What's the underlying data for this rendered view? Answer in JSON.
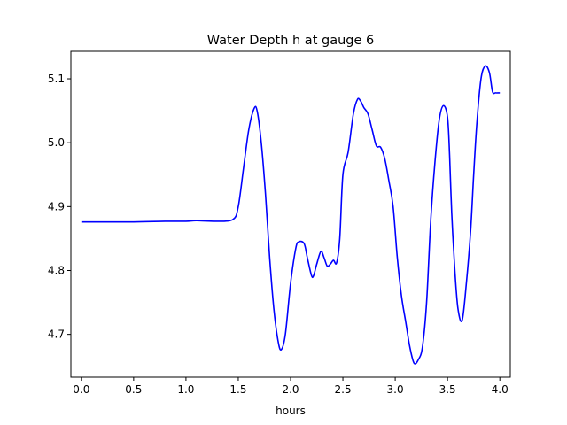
{
  "chart_data": {
    "type": "line",
    "title": "Water Depth h at gauge 6",
    "xlabel": "hours",
    "ylabel": "",
    "xlim": [
      -0.1,
      4.1
    ],
    "ylim": [
      4.633,
      5.143
    ],
    "xticks": [
      0.0,
      0.5,
      1.0,
      1.5,
      2.0,
      2.5,
      3.0,
      3.5,
      4.0
    ],
    "xtick_labels": [
      "0.0",
      "0.5",
      "1.0",
      "1.5",
      "2.0",
      "2.5",
      "3.0",
      "3.5",
      "4.0"
    ],
    "yticks": [
      4.7,
      4.8,
      4.9,
      5.0,
      5.1
    ],
    "ytick_labels": [
      "4.7",
      "4.8",
      "4.9",
      "5.0",
      "5.1"
    ],
    "grid": false,
    "legend": "none",
    "line_color": "#0000ff",
    "series": [
      {
        "x": [
          0.0,
          0.5,
          0.8,
          1.0,
          1.1,
          1.3,
          1.45,
          1.5,
          1.55,
          1.6,
          1.65,
          1.68,
          1.72,
          1.76,
          1.8,
          1.84,
          1.88,
          1.91,
          1.95,
          2.0,
          2.05,
          2.08,
          2.13,
          2.16,
          2.2,
          2.22,
          2.25,
          2.29,
          2.32,
          2.35,
          2.38,
          2.41,
          2.44,
          2.47,
          2.5,
          2.55,
          2.6,
          2.64,
          2.67,
          2.7,
          2.74,
          2.78,
          2.82,
          2.86,
          2.9,
          2.94,
          2.98,
          3.02,
          3.06,
          3.1,
          3.14,
          3.18,
          3.22,
          3.26,
          3.3,
          3.34,
          3.38,
          3.42,
          3.46,
          3.5,
          3.52,
          3.54,
          3.57,
          3.6,
          3.64,
          3.68,
          3.72,
          3.75,
          3.78,
          3.82,
          3.86,
          3.9,
          3.93,
          3.96,
          3.99,
          4.0
        ],
        "y": [
          4.876,
          4.876,
          4.877,
          4.877,
          4.878,
          4.877,
          4.88,
          4.9,
          4.96,
          5.02,
          5.053,
          5.05,
          5.0,
          4.92,
          4.82,
          4.74,
          4.69,
          4.676,
          4.7,
          4.78,
          4.835,
          4.845,
          4.842,
          4.82,
          4.792,
          4.792,
          4.81,
          4.83,
          4.82,
          4.807,
          4.81,
          4.816,
          4.812,
          4.85,
          4.95,
          4.985,
          5.045,
          5.068,
          5.065,
          5.055,
          5.045,
          5.02,
          4.995,
          4.993,
          4.975,
          4.94,
          4.9,
          4.82,
          4.76,
          4.72,
          4.68,
          4.655,
          4.66,
          4.68,
          4.75,
          4.88,
          4.97,
          5.035,
          5.058,
          5.04,
          4.98,
          4.89,
          4.8,
          4.74,
          4.722,
          4.78,
          4.86,
          4.95,
          5.03,
          5.1,
          5.12,
          5.11,
          5.08,
          5.078,
          5.078,
          5.078
        ]
      }
    ]
  }
}
